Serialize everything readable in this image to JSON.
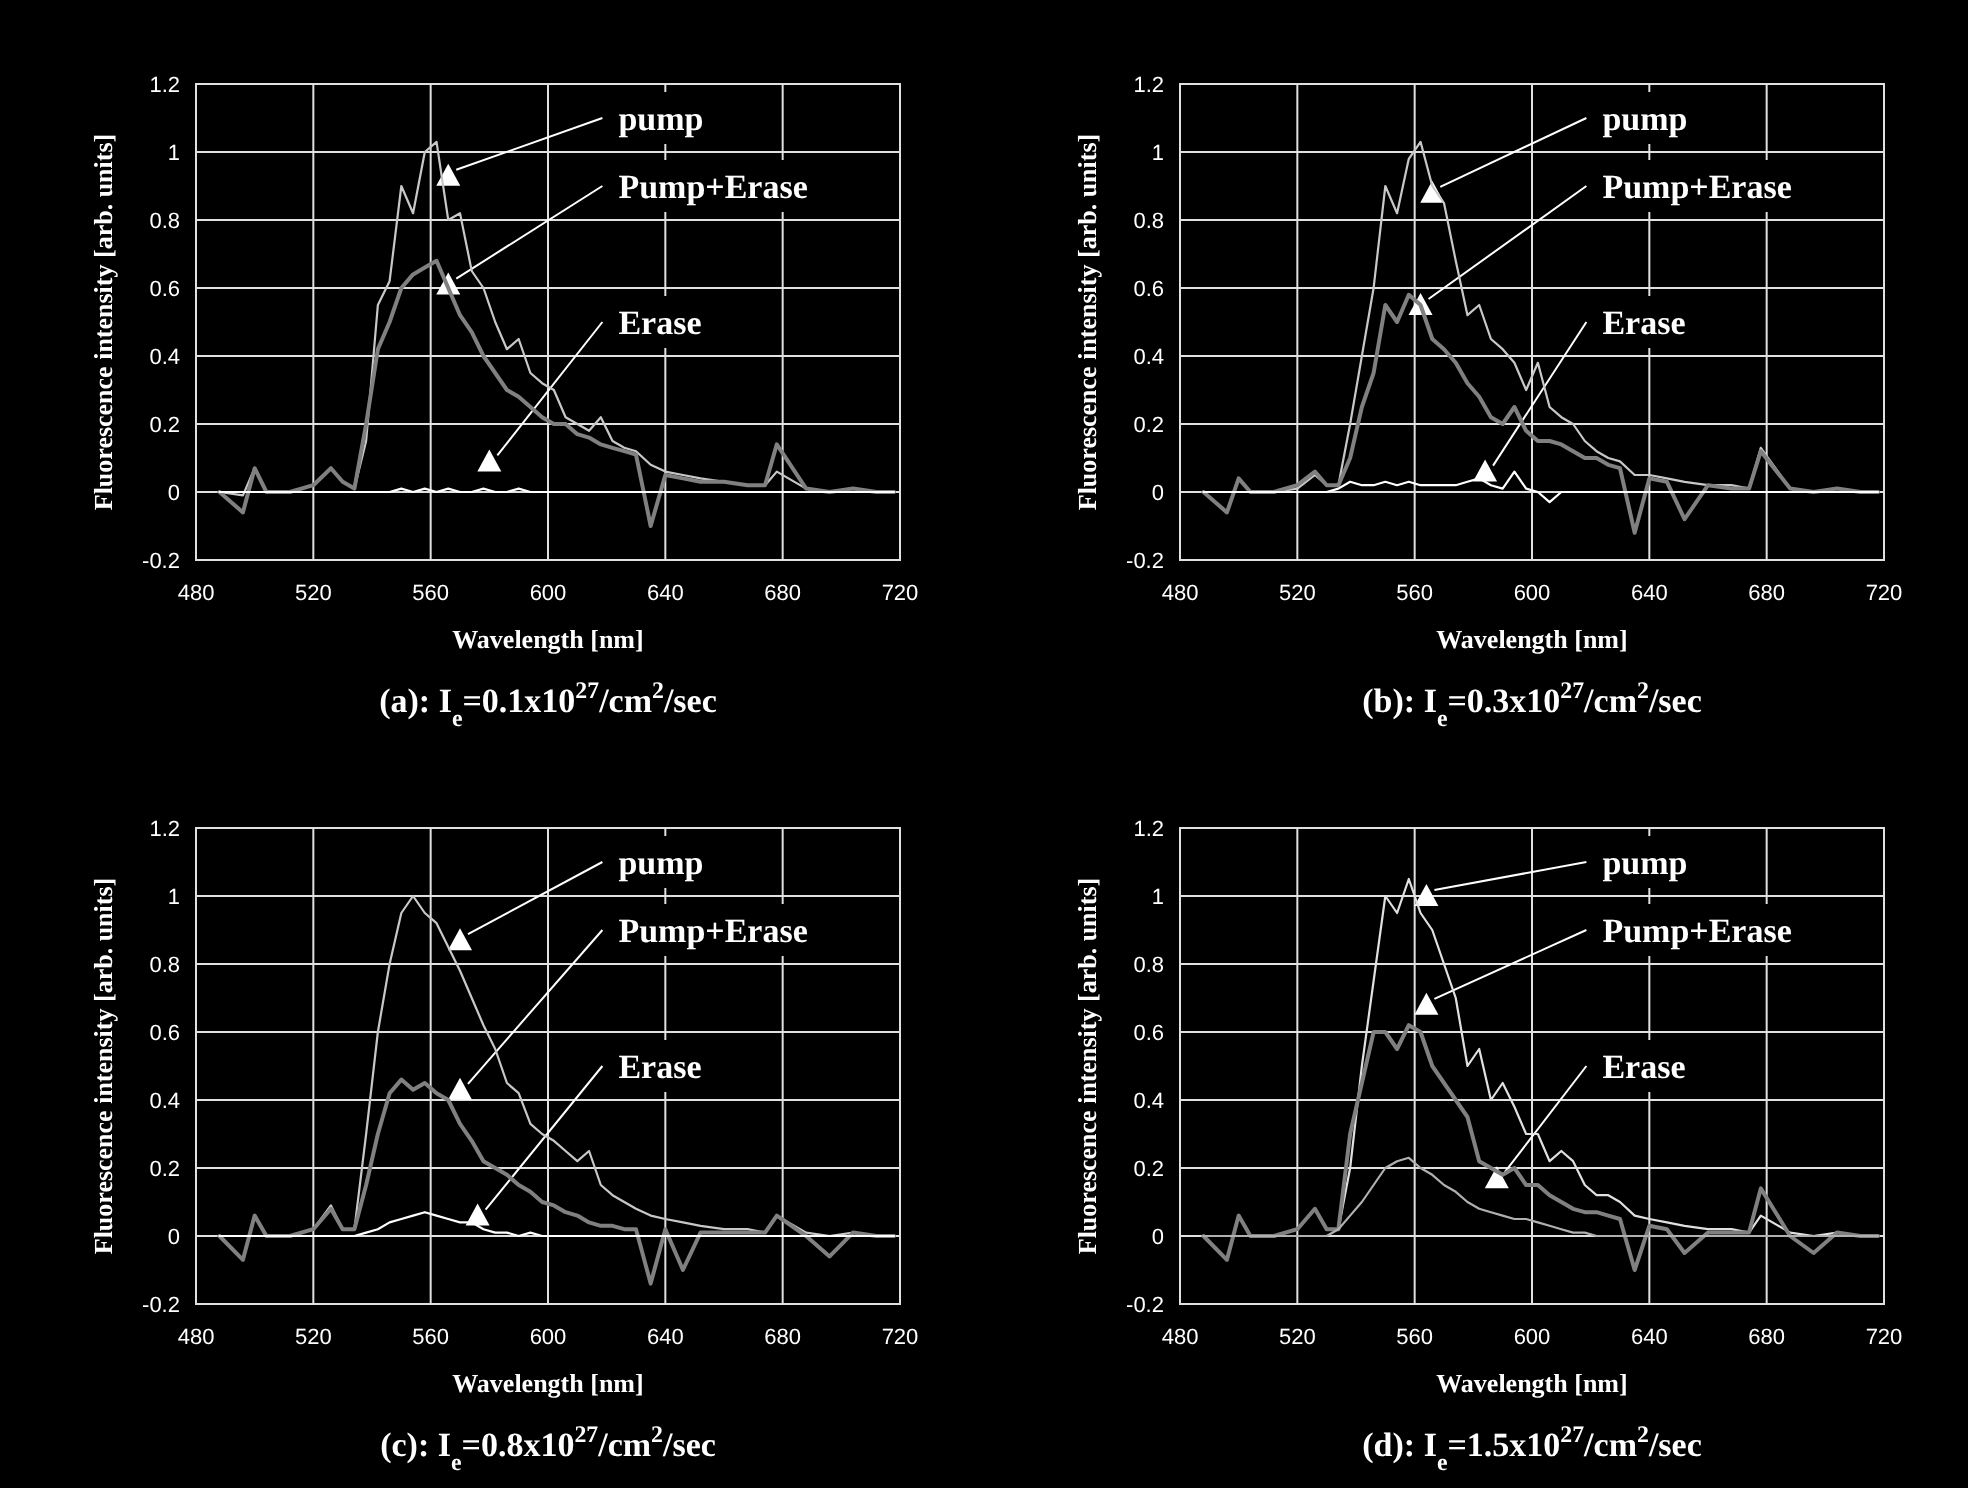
{
  "chart_data": [
    {
      "type": "line",
      "title": "(a): I$_{e}$=0.1x10$^{27}$/cm$^{2}$/sec",
      "xlabel": "Wavelength [nm]",
      "ylabel": "Fluorescence intensity [arb. units]",
      "x": [
        488,
        496,
        500,
        504,
        512,
        520,
        526,
        530,
        534,
        538,
        542,
        546,
        550,
        554,
        558,
        562,
        566,
        570,
        574,
        578,
        582,
        586,
        590,
        594,
        598,
        602,
        606,
        610,
        614,
        618,
        622,
        626,
        630,
        635,
        640,
        646,
        652,
        660,
        668,
        674,
        678,
        688,
        696,
        704,
        712,
        718
      ],
      "series": [
        {
          "color": "#c8c8c8",
          "values": [
            0,
            -0.01,
            0.07,
            0,
            0,
            0.02,
            0.07,
            0.03,
            0.01,
            0.15,
            0.55,
            0.62,
            0.9,
            0.82,
            1.0,
            1.03,
            0.8,
            0.82,
            0.65,
            0.6,
            0.5,
            0.42,
            0.45,
            0.35,
            0.32,
            0.3,
            0.22,
            0.2,
            0.18,
            0.22,
            0.15,
            0.13,
            0.12,
            0.08,
            0.06,
            0.05,
            0.04,
            0.03,
            0.02,
            0.02,
            0.06,
            0.01,
            0,
            0.01,
            0,
            0
          ]
        },
        {
          "color": "#808080",
          "values": [
            0,
            -0.06,
            0.07,
            0,
            0,
            0.02,
            0.07,
            0.03,
            0.01,
            0.2,
            0.42,
            0.5,
            0.6,
            0.64,
            0.66,
            0.68,
            0.6,
            0.52,
            0.47,
            0.4,
            0.35,
            0.3,
            0.28,
            0.25,
            0.22,
            0.2,
            0.2,
            0.17,
            0.16,
            0.14,
            0.13,
            0.12,
            0.11,
            -0.1,
            0.05,
            0.04,
            0.03,
            0.03,
            0.02,
            0.02,
            0.14,
            0.01,
            0,
            0.01,
            0,
            0
          ]
        },
        {
          "color": "#ffffff",
          "values": [
            0,
            0,
            0,
            0,
            0,
            0,
            0,
            0,
            0,
            0,
            0,
            0,
            0.01,
            0,
            0.01,
            0,
            0.01,
            0,
            0,
            0.01,
            0,
            0,
            0.01,
            0,
            0,
            0,
            0,
            0,
            0,
            0,
            0,
            0,
            0,
            0,
            0,
            0,
            0,
            0,
            0,
            0,
            0,
            0,
            0,
            0,
            0,
            0
          ]
        }
      ],
      "annotations": [
        {
          "text": "pump",
          "x": 566,
          "y": 0.93
        },
        {
          "text": "Pump+Erase",
          "x": 566,
          "y": 0.61
        },
        {
          "text": "Erase",
          "x": 580,
          "y": 0.09
        }
      ],
      "xlim": [
        480,
        720
      ],
      "xticks": [
        480,
        520,
        560,
        600,
        640,
        680,
        720
      ],
      "ylim": [
        -0.2,
        1.2
      ],
      "yticks": [
        -0.2,
        0,
        0.2,
        0.4,
        0.6,
        0.8,
        1,
        1.2
      ],
      "grid": true
    },
    {
      "type": "line",
      "title": "(b): I$_{e}$=0.3x10$^{27}$/cm$^{2}$/sec",
      "xlabel": "Wavelength [nm]",
      "ylabel": "Fluorescence intensity [arb. units]",
      "x": [
        488,
        496,
        500,
        504,
        512,
        520,
        526,
        530,
        534,
        538,
        542,
        546,
        550,
        554,
        558,
        562,
        566,
        570,
        574,
        578,
        582,
        586,
        590,
        594,
        598,
        602,
        606,
        610,
        614,
        618,
        622,
        626,
        630,
        635,
        640,
        646,
        652,
        660,
        668,
        674,
        678,
        688,
        696,
        704,
        712,
        718
      ],
      "series": [
        {
          "color": "#c8c8c8",
          "values": [
            0,
            -0.06,
            0.04,
            0,
            0,
            0.01,
            0.05,
            0.02,
            0.02,
            0.2,
            0.4,
            0.6,
            0.9,
            0.82,
            0.98,
            1.03,
            0.9,
            0.85,
            0.68,
            0.52,
            0.55,
            0.45,
            0.42,
            0.38,
            0.3,
            0.38,
            0.25,
            0.22,
            0.2,
            0.15,
            0.12,
            0.1,
            0.09,
            0.05,
            0.05,
            0.04,
            0.03,
            0.02,
            0.02,
            0.01,
            0.13,
            0.01,
            0,
            0.01,
            0,
            0
          ]
        },
        {
          "color": "#808080",
          "values": [
            0,
            -0.06,
            0.04,
            0,
            0,
            0.02,
            0.06,
            0.02,
            0.02,
            0.1,
            0.25,
            0.35,
            0.55,
            0.5,
            0.58,
            0.55,
            0.45,
            0.42,
            0.38,
            0.32,
            0.28,
            0.22,
            0.2,
            0.25,
            0.18,
            0.15,
            0.15,
            0.14,
            0.12,
            0.1,
            0.1,
            0.08,
            0.07,
            -0.12,
            0.04,
            0.03,
            -0.08,
            0.02,
            0.01,
            0.01,
            0.12,
            0.01,
            0,
            0.01,
            0,
            0
          ]
        },
        {
          "color": "#ffffff",
          "values": [
            0,
            0,
            0,
            0,
            0,
            0,
            0,
            0,
            0.01,
            0.03,
            0.02,
            0.02,
            0.03,
            0.02,
            0.03,
            0.02,
            0.02,
            0.02,
            0.02,
            0.03,
            0.04,
            0.02,
            0.01,
            0.06,
            0.01,
            0,
            -0.03,
            0,
            0,
            0,
            0,
            0,
            0,
            0,
            0,
            0,
            0,
            0,
            0,
            0,
            0,
            0,
            0,
            0,
            0,
            0
          ]
        }
      ],
      "annotations": [
        {
          "text": "pump",
          "x": 566,
          "y": 0.88
        },
        {
          "text": "Pump+Erase",
          "x": 562,
          "y": 0.55
        },
        {
          "text": "Erase",
          "x": 584,
          "y": 0.06
        }
      ],
      "xlim": [
        480,
        720
      ],
      "xticks": [
        480,
        520,
        560,
        600,
        640,
        680,
        720
      ],
      "ylim": [
        -0.2,
        1.2
      ],
      "yticks": [
        -0.2,
        0,
        0.2,
        0.4,
        0.6,
        0.8,
        1,
        1.2
      ],
      "grid": true
    },
    {
      "type": "line",
      "title": "(c): I$_{e}$=0.8x10$^{27}$/cm$^{2}$/sec",
      "xlabel": "Wavelength [nm]",
      "ylabel": "Fluorescence intensity [arb. units]",
      "x": [
        488,
        496,
        500,
        504,
        512,
        520,
        526,
        530,
        534,
        538,
        542,
        546,
        550,
        554,
        558,
        562,
        566,
        570,
        574,
        578,
        582,
        586,
        590,
        594,
        598,
        602,
        606,
        610,
        614,
        618,
        622,
        626,
        630,
        635,
        640,
        646,
        652,
        660,
        668,
        674,
        678,
        688,
        696,
        704,
        712,
        718
      ],
      "series": [
        {
          "color": "#c8c8c8",
          "values": [
            0,
            -0.07,
            0.06,
            0,
            0,
            0.02,
            0.09,
            0.02,
            0.02,
            0.3,
            0.6,
            0.8,
            0.95,
            1.0,
            0.95,
            0.92,
            0.85,
            0.78,
            0.7,
            0.62,
            0.55,
            0.45,
            0.42,
            0.33,
            0.3,
            0.28,
            0.25,
            0.22,
            0.25,
            0.15,
            0.12,
            0.1,
            0.08,
            0.06,
            0.05,
            0.04,
            0.03,
            0.02,
            0.02,
            0.01,
            0.06,
            0.01,
            0,
            0.01,
            0,
            0
          ]
        },
        {
          "color": "#808080",
          "values": [
            0,
            -0.07,
            0.06,
            0,
            0,
            0.02,
            0.08,
            0.02,
            0.02,
            0.15,
            0.3,
            0.42,
            0.46,
            0.43,
            0.45,
            0.42,
            0.4,
            0.33,
            0.28,
            0.22,
            0.2,
            0.18,
            0.15,
            0.13,
            0.1,
            0.09,
            0.07,
            0.06,
            0.04,
            0.03,
            0.03,
            0.02,
            0.02,
            -0.14,
            0.02,
            -0.1,
            0.01,
            0.01,
            0.01,
            0.01,
            0.06,
            0,
            -0.06,
            0.01,
            0,
            0
          ]
        },
        {
          "color": "#ffffff",
          "values": [
            0,
            0,
            0,
            0,
            0,
            0,
            0,
            0,
            0,
            0.01,
            0.02,
            0.04,
            0.05,
            0.06,
            0.07,
            0.06,
            0.05,
            0.04,
            0.04,
            0.02,
            0.01,
            0.01,
            0,
            0.01,
            0,
            0,
            0,
            0,
            0,
            0,
            0,
            0,
            0,
            0,
            0,
            0,
            0,
            0,
            0,
            0,
            0,
            0,
            0,
            0,
            0,
            0
          ]
        }
      ],
      "annotations": [
        {
          "text": "pump",
          "x": 570,
          "y": 0.87
        },
        {
          "text": "Pump+Erase",
          "x": 570,
          "y": 0.43
        },
        {
          "text": "Erase",
          "x": 576,
          "y": 0.06
        }
      ],
      "xlim": [
        480,
        720
      ],
      "xticks": [
        480,
        520,
        560,
        600,
        640,
        680,
        720
      ],
      "ylim": [
        -0.2,
        1.2
      ],
      "yticks": [
        -0.2,
        0,
        0.2,
        0.4,
        0.6,
        0.8,
        1,
        1.2
      ],
      "grid": true
    },
    {
      "type": "line",
      "title": "(d): I$_{e}$=1.5x10$^{27}$/cm$^{2}$/sec",
      "xlabel": "Wavelength [nm]",
      "ylabel": "Fluorescence intensity [arb. units]",
      "x": [
        488,
        496,
        500,
        504,
        512,
        520,
        526,
        530,
        534,
        538,
        542,
        546,
        550,
        554,
        558,
        562,
        566,
        570,
        574,
        578,
        582,
        586,
        590,
        594,
        598,
        602,
        606,
        610,
        614,
        618,
        622,
        626,
        630,
        635,
        640,
        646,
        652,
        660,
        668,
        674,
        678,
        688,
        696,
        704,
        712,
        718
      ],
      "series": [
        {
          "color": "#e0e0e0",
          "values": [
            0,
            -0.07,
            0.06,
            0,
            0,
            0.02,
            0.08,
            0.02,
            0.02,
            0.2,
            0.5,
            0.75,
            1.0,
            0.95,
            1.05,
            0.95,
            0.9,
            0.8,
            0.7,
            0.5,
            0.55,
            0.4,
            0.45,
            0.38,
            0.3,
            0.3,
            0.22,
            0.25,
            0.22,
            0.15,
            0.12,
            0.12,
            0.1,
            0.06,
            0.05,
            0.04,
            0.03,
            0.02,
            0.02,
            0.01,
            0.06,
            0.01,
            0,
            0.01,
            0,
            0
          ]
        },
        {
          "color": "#808080",
          "values": [
            0,
            -0.07,
            0.06,
            0,
            0,
            0.02,
            0.08,
            0.02,
            0.02,
            0.3,
            0.45,
            0.6,
            0.6,
            0.55,
            0.62,
            0.6,
            0.5,
            0.45,
            0.4,
            0.35,
            0.22,
            0.2,
            0.18,
            0.2,
            0.15,
            0.15,
            0.12,
            0.1,
            0.08,
            0.07,
            0.07,
            0.06,
            0.05,
            -0.1,
            0.03,
            0.02,
            -0.05,
            0.01,
            0.01,
            0.01,
            0.14,
            0,
            -0.05,
            0.01,
            0,
            0
          ]
        },
        {
          "color": "#b0b0b0",
          "values": [
            0,
            0,
            0,
            0,
            0,
            0,
            0,
            0,
            0.02,
            0.06,
            0.1,
            0.15,
            0.2,
            0.22,
            0.23,
            0.2,
            0.18,
            0.15,
            0.13,
            0.1,
            0.08,
            0.07,
            0.06,
            0.05,
            0.05,
            0.04,
            0.03,
            0.02,
            0.01,
            0.01,
            0,
            0,
            0,
            0,
            0,
            0,
            0,
            0,
            0,
            0,
            0,
            0,
            0,
            0,
            0,
            0
          ]
        }
      ],
      "annotations": [
        {
          "text": "pump",
          "x": 564,
          "y": 1.0
        },
        {
          "text": "Pump+Erase",
          "x": 564,
          "y": 0.68
        },
        {
          "text": "Erase",
          "x": 588,
          "y": 0.17
        }
      ],
      "xlim": [
        480,
        720
      ],
      "xticks": [
        480,
        520,
        560,
        600,
        640,
        680,
        720
      ],
      "ylim": [
        -0.2,
        1.2
      ],
      "yticks": [
        -0.2,
        0,
        0.2,
        0.4,
        0.6,
        0.8,
        1,
        1.2
      ],
      "grid": true
    }
  ]
}
